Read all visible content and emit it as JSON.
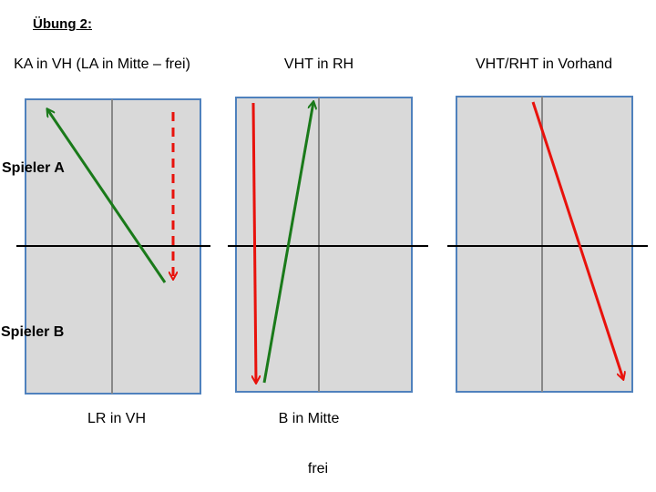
{
  "heading": "Übung 2:",
  "players": {
    "a": "Spieler A",
    "b": "Spieler B"
  },
  "columns": [
    {
      "title": "KA in VH (LA in Mitte – frei)",
      "bottom": "LR in VH"
    },
    {
      "title": "VHT in RH",
      "bottom": "B in Mitte"
    },
    {
      "title": "VHT/RHT in Vorhand"
    }
  ],
  "footer": "frei"
}
